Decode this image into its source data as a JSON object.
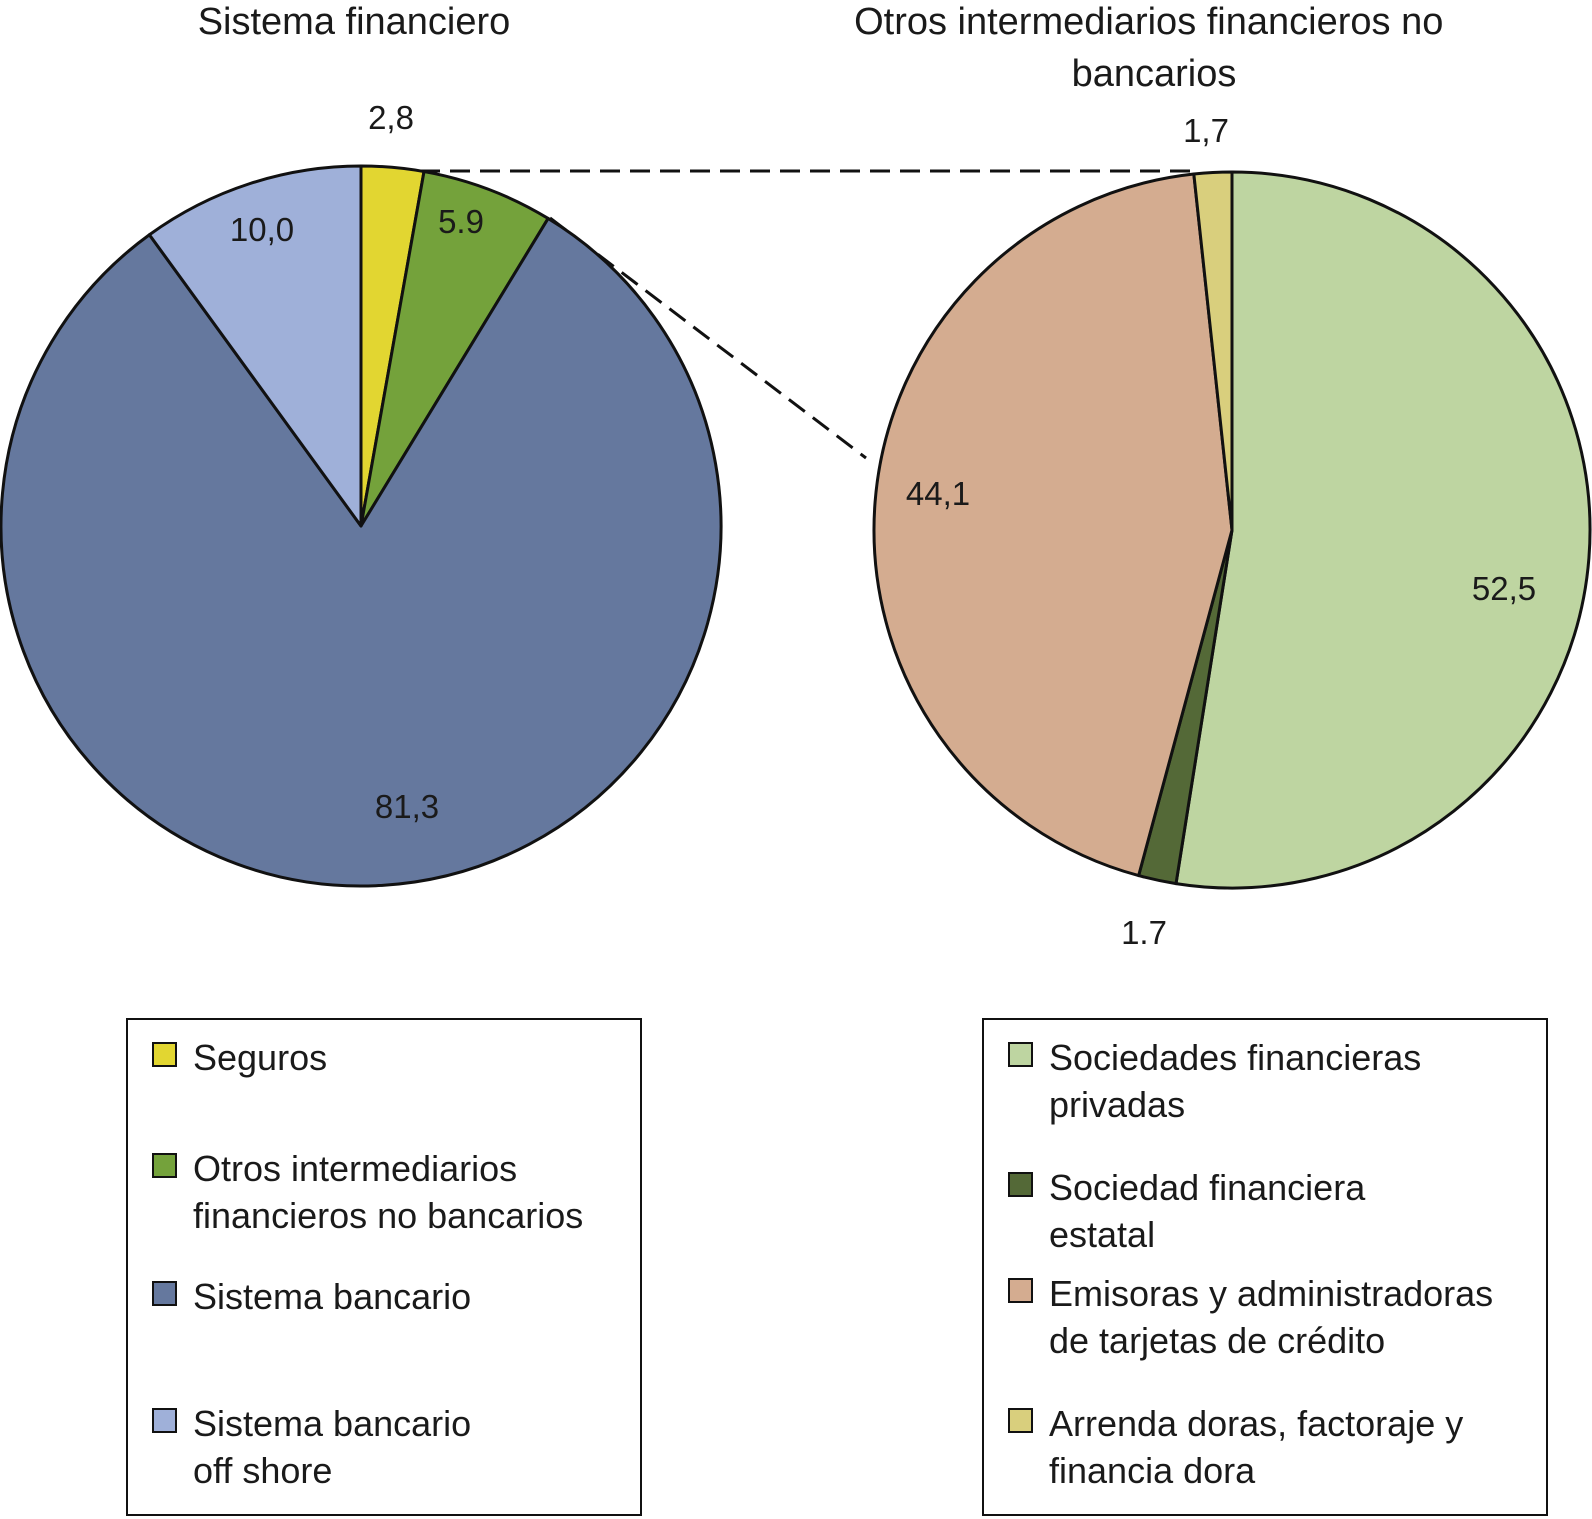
{
  "chart_data": [
    {
      "type": "pie",
      "title": "Sistema financiero",
      "slices": [
        {
          "name": "Seguros",
          "value": 2.8,
          "label": "2,8",
          "color": "#e2d631"
        },
        {
          "name": "Otros intermediarios financieros no bancarios",
          "value": 5.9,
          "label": "5.9",
          "color": "#74a23b"
        },
        {
          "name": "Sistema bancario",
          "value": 81.3,
          "label": "81,3",
          "color": "#65789e"
        },
        {
          "name": "Sistema bancario off shore",
          "value": 10.0,
          "label": "10,0",
          "color": "#9fb0d9"
        }
      ],
      "legend": [
        "Seguros",
        "Otros intermediarios\nfinancieros no bancarios",
        "Sistema bancario",
        "Sistema bancario\noff shore"
      ],
      "legend_position": "bottom-left"
    },
    {
      "type": "pie",
      "title": "Otros intermediarios financieros no bancarios",
      "slices": [
        {
          "name": "Sociedades financieras privadas",
          "value": 52.5,
          "label": "52,5",
          "color": "#bed5a1"
        },
        {
          "name": "Sociedad financiera estatal",
          "value": 1.7,
          "label": "1.7",
          "color": "#546937"
        },
        {
          "name": "Emisoras y administradoras de tarjetas de crédito",
          "value": 44.1,
          "label": "44,1",
          "color": "#d4ac90"
        },
        {
          "name": "Arrenda doras, factoraje y financia dora",
          "value": 1.7,
          "label": "1,7",
          "color": "#d9cf7d"
        }
      ],
      "legend": [
        "Sociedades financieras\nprivadas",
        "Sociedad financiera\nestatal",
        "Emisoras y administradoras\nde tarjetas de crédito",
        "Arrenda doras, factoraje y\nfinancia dora"
      ],
      "legend_position": "bottom-right"
    }
  ]
}
